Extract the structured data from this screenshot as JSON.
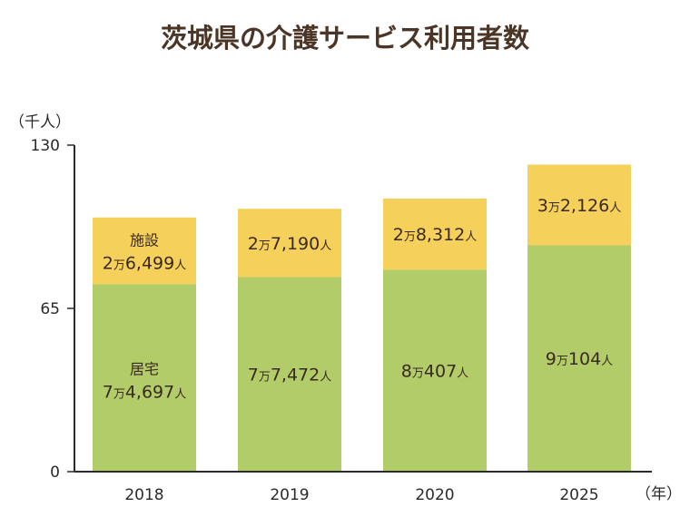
{
  "chart_data": {
    "type": "bar",
    "stacked": true,
    "title": "茨城県の介護サービス利用者数",
    "y_unit_label": "（千人）",
    "x_unit_label": "（年）",
    "ylim": [
      0,
      130
    ],
    "y_ticks": [
      "0",
      "65",
      "130"
    ],
    "categories": [
      "2018",
      "2019",
      "2020",
      "2025"
    ],
    "series": [
      {
        "name": "居宅",
        "color": "#b3cc6a",
        "values": [
          74.697,
          77.472,
          80.407,
          90.104
        ],
        "labels": [
          {
            "man": "7",
            "unit": "万",
            "rest": "4,697",
            "person": "人"
          },
          {
            "man": "7",
            "unit": "万",
            "rest": "7,472",
            "person": "人"
          },
          {
            "man": "8",
            "unit": "万",
            "rest": "407",
            "person": "人"
          },
          {
            "man": "9",
            "unit": "万",
            "rest": "104",
            "person": "人"
          }
        ]
      },
      {
        "name": "施設",
        "color": "#f5d05a",
        "values": [
          26.499,
          27.19,
          28.312,
          32.126
        ],
        "labels": [
          {
            "man": "2",
            "unit": "万",
            "rest": "6,499",
            "person": "人"
          },
          {
            "man": "2",
            "unit": "万",
            "rest": "7,190",
            "person": "人"
          },
          {
            "man": "2",
            "unit": "万",
            "rest": "8,312",
            "person": "人"
          },
          {
            "man": "3",
            "unit": "万",
            "rest": "2,126",
            "person": "人"
          }
        ]
      }
    ],
    "series_name_shown_on": "2018"
  }
}
